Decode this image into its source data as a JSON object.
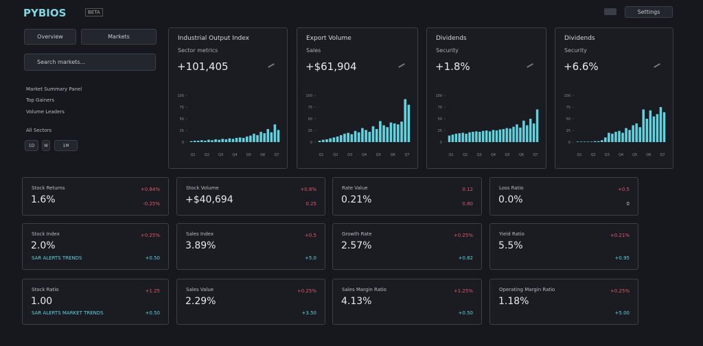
{
  "header": {
    "logo": "PYBIOS",
    "badge": "BETA",
    "settings": "Settings"
  },
  "sidebar": {
    "buttons": [
      "Overview",
      "Markets"
    ],
    "search": "Search markets...",
    "items": [
      "Market Summary Panel",
      "Top Gainers",
      "Volume Leaders",
      "All Sectors"
    ],
    "filters": [
      "1D",
      "W",
      "1M"
    ]
  },
  "cards": [
    {
      "title": "Industrial Output Index",
      "subtitle": "Sector metrics",
      "value": "+101,405",
      "chart": {
        "type": "bar",
        "color": "#5fd3e0",
        "ylim": [
          0,
          100
        ],
        "yticks": [
          0,
          25,
          50,
          75,
          100
        ],
        "xlabels": [
          "Q1",
          "Q2",
          "Q3",
          "Q4",
          "Q5",
          "Q6",
          "Q7"
        ],
        "values": [
          2,
          3,
          3,
          4,
          3,
          5,
          4,
          6,
          5,
          7,
          6,
          8,
          7,
          9,
          10,
          9,
          12,
          14,
          18,
          15,
          22,
          19,
          28,
          21,
          38,
          26
        ]
      }
    },
    {
      "title": "Export Volume",
      "subtitle": "Sales",
      "value": "+$61,904",
      "chart": {
        "type": "bar",
        "color": "#5fd3e0",
        "ylim": [
          0,
          100
        ],
        "yticks": [
          0,
          25,
          50,
          75,
          100
        ],
        "xlabels": [
          "Q1",
          "Q2",
          "Q3",
          "Q4",
          "Q5",
          "Q6",
          "Q7"
        ],
        "values": [
          3,
          5,
          6,
          8,
          10,
          12,
          15,
          18,
          20,
          17,
          24,
          21,
          30,
          26,
          22,
          34,
          28,
          45,
          36,
          32,
          42,
          40,
          38,
          44,
          92,
          80
        ]
      }
    },
    {
      "title": "Dividends",
      "subtitle": "Security",
      "value": "+1.8%",
      "chart": {
        "type": "bar",
        "color": "#5fd3e0",
        "ylim": [
          0,
          100
        ],
        "yticks": [
          0,
          25,
          50,
          75,
          100
        ],
        "xlabels": [
          "Q1",
          "Q2",
          "Q3",
          "Q4",
          "Q5",
          "Q6",
          "Q7"
        ],
        "values": [
          14,
          16,
          18,
          19,
          20,
          18,
          21,
          22,
          23,
          22,
          24,
          25,
          23,
          26,
          25,
          27,
          28,
          30,
          29,
          33,
          38,
          31,
          46,
          36,
          50,
          40,
          70
        ]
      }
    },
    {
      "title": "Dividends",
      "subtitle": "Security",
      "value": "+6.6%",
      "chart": {
        "type": "bar",
        "color": "#5fd3e0",
        "ylim": [
          0,
          100
        ],
        "yticks": [
          0,
          25,
          50,
          75,
          100
        ],
        "xlabels": [
          "Q1",
          "Q2",
          "Q3",
          "Q4",
          "Q5",
          "Q6",
          "Q7"
        ],
        "values": [
          1,
          1,
          1,
          1,
          1,
          2,
          2,
          4,
          10,
          20,
          18,
          22,
          24,
          20,
          30,
          26,
          36,
          40,
          32,
          70,
          50,
          68,
          55,
          60,
          75,
          64
        ]
      }
    }
  ],
  "metrics": [
    {
      "label": "Stock Returns",
      "value": "1.6%",
      "change": "+0.84%",
      "detail": "-0.25%",
      "detail_color": "#e05a6a"
    },
    {
      "label": "Stock Volume",
      "value": "+$40,694",
      "change": "+0.8%",
      "detail": "0.25",
      "detail_color": "#e05a6a"
    },
    {
      "label": "Rate Value",
      "value": "0.21%",
      "change": "0.12",
      "detail": "0.80",
      "detail_color": "#e05a6a"
    },
    {
      "label": "Loss Ratio",
      "value": "0.0%",
      "change": "+0.5",
      "detail": "0",
      "detail_color": "#c8ccd4"
    },
    {
      "label": "Stock Index",
      "value": "2.0%",
      "change": "+0.25%",
      "detail": "+0.50",
      "detail_color": "#5fd3e0",
      "note": "SAR ALERTS TRENDS"
    },
    {
      "label": "Sales Index",
      "value": "3.89%",
      "change": "+0.5",
      "detail": "+5.0",
      "detail_color": "#5fd3e0"
    },
    {
      "label": "Growth Rate",
      "value": "2.57%",
      "change": "+0.25%",
      "detail": "+0.82",
      "detail_color": "#5fd3e0"
    },
    {
      "label": "Yield Ratio",
      "value": "5.5%",
      "change": "+0.21%",
      "detail": "+0.95",
      "detail_color": "#5fd3e0"
    },
    {
      "label": "Stock Ratio",
      "value": "1.00",
      "change": "+1.25",
      "detail": "+0.50",
      "detail_color": "#5fd3e0",
      "note": "SAR ALERTS MARKET TRENDS"
    },
    {
      "label": "Sales Value",
      "value": "2.29%",
      "change": "+0.25%",
      "detail": "+3.50",
      "detail_color": "#5fd3e0"
    },
    {
      "label": "Sales Margin Ratio",
      "value": "4.13%",
      "change": "+1.25%",
      "detail": "+0.50",
      "detail_color": "#5fd3e0"
    },
    {
      "label": "Operating Margin Ratio",
      "value": "1.18%",
      "change": "+0.25%",
      "detail": "+5.00",
      "detail_color": "#5fd3e0"
    }
  ]
}
